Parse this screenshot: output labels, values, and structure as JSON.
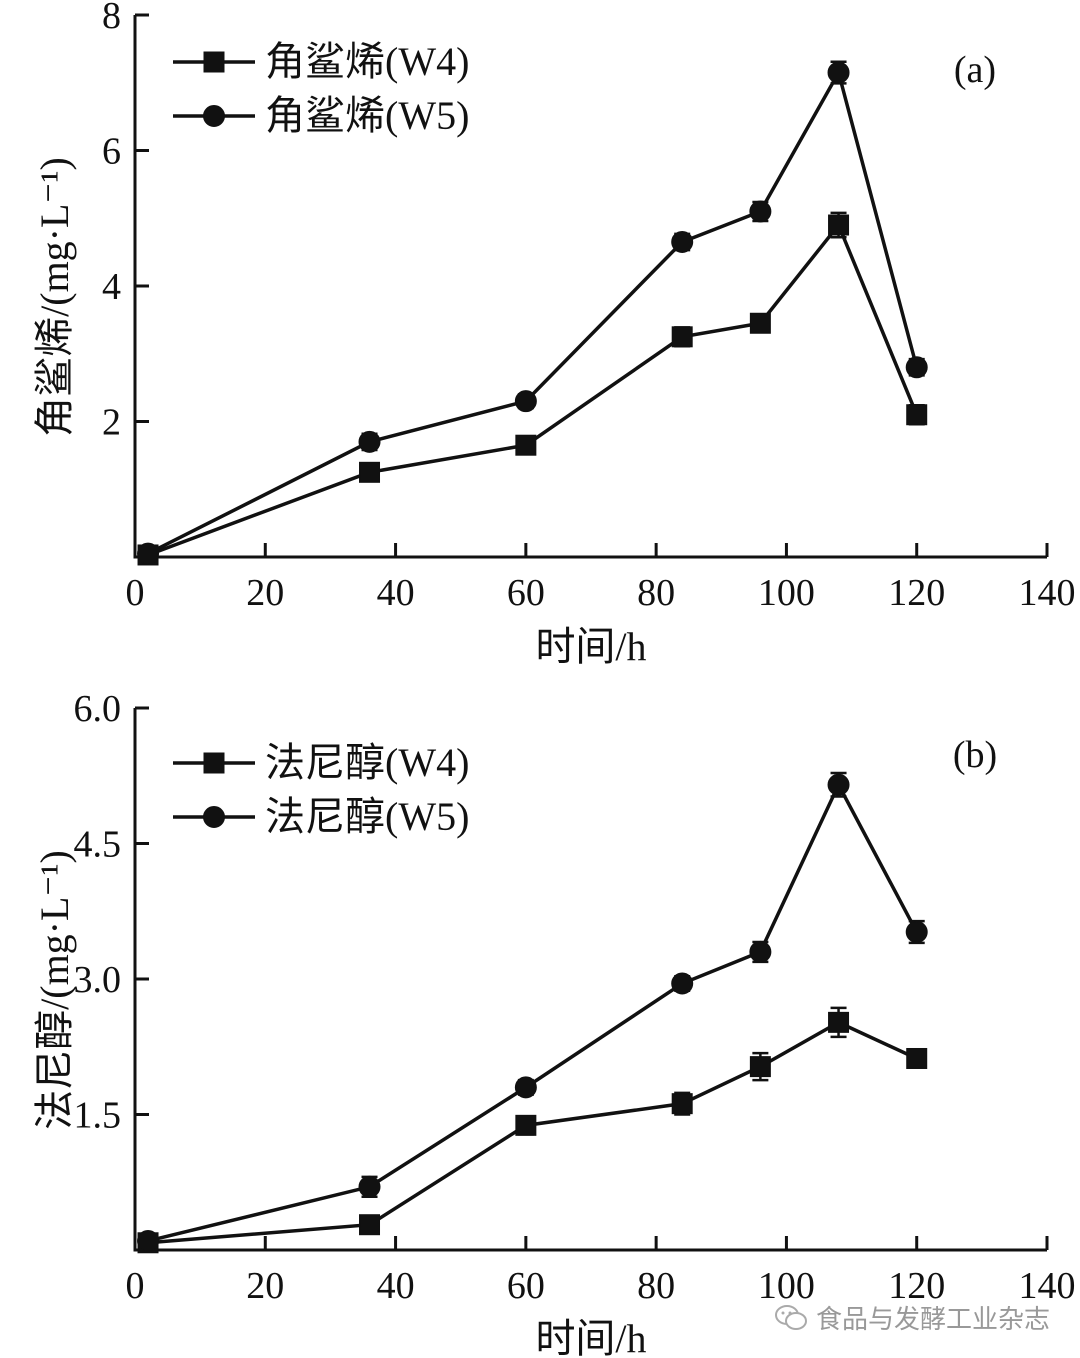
{
  "chart_data": [
    {
      "type": "line",
      "panel_label": "(a)",
      "xlabel": "时间/h",
      "ylabel": "角鲨烯/(mg·L⁻¹)",
      "xlim": [
        0,
        140
      ],
      "ylim": [
        0,
        8
      ],
      "x_ticks": [
        "0",
        "20",
        "40",
        "60",
        "80",
        "100",
        "120",
        "140"
      ],
      "y_ticks": [
        "2",
        "4",
        "6",
        "8"
      ],
      "legend_position": "top-left",
      "series": [
        {
          "name": "角鲨烯(W4)",
          "marker": "square",
          "x": [
            2,
            36,
            60,
            84,
            96,
            108,
            120
          ],
          "y": [
            0.03,
            1.25,
            1.65,
            3.25,
            3.45,
            4.9,
            2.1
          ],
          "err": [
            0.06,
            0.1,
            0.12,
            0.14,
            0.12,
            0.18,
            0.14
          ]
        },
        {
          "name": "角鲨烯(W5)",
          "marker": "circle",
          "x": [
            2,
            36,
            60,
            84,
            96,
            108,
            120
          ],
          "y": [
            0.05,
            1.7,
            2.3,
            4.65,
            5.1,
            7.15,
            2.8
          ],
          "err": [
            0.06,
            0.12,
            0.1,
            0.12,
            0.14,
            0.16,
            0.12
          ]
        }
      ]
    },
    {
      "type": "line",
      "panel_label": "(b)",
      "xlabel": "时间/h",
      "ylabel": "法尼醇/(mg·L⁻¹)",
      "xlim": [
        0,
        140
      ],
      "ylim": [
        0,
        6.0
      ],
      "x_ticks": [
        "0",
        "20",
        "40",
        "60",
        "80",
        "100",
        "120",
        "140"
      ],
      "y_ticks": [
        "1.5",
        "3.0",
        "4.5",
        "6.0"
      ],
      "legend_position": "top-left",
      "series": [
        {
          "name": "法尼醇(W4)",
          "marker": "square",
          "x": [
            2,
            36,
            60,
            84,
            96,
            108,
            120
          ],
          "y": [
            0.08,
            0.28,
            1.38,
            1.62,
            2.03,
            2.52,
            2.12
          ],
          "err": [
            0.06,
            0.09,
            0.1,
            0.12,
            0.15,
            0.16,
            0.1
          ]
        },
        {
          "name": "法尼醇(W5)",
          "marker": "circle",
          "x": [
            2,
            36,
            60,
            84,
            96,
            108,
            120
          ],
          "y": [
            0.1,
            0.7,
            1.8,
            2.95,
            3.3,
            5.15,
            3.52
          ],
          "err": [
            0.05,
            0.11,
            0.08,
            0.08,
            0.11,
            0.13,
            0.12
          ]
        }
      ]
    }
  ],
  "watermark": {
    "text": "食品与发酵工业杂志",
    "icon": "wechat-icon"
  }
}
